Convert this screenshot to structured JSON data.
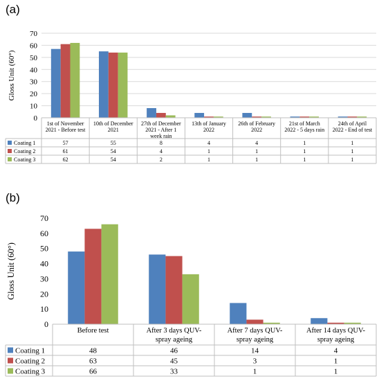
{
  "panel_a_label": "(a)",
  "panel_b_label": "(b)",
  "colors": {
    "series1": "#4f81bd",
    "series2": "#c0504d",
    "series3": "#9bbb59"
  },
  "chart_data": [
    {
      "type": "bar",
      "title": "",
      "ylabel": "Gloss Unit (60°)",
      "xlabel": "",
      "ylim": [
        0,
        70
      ],
      "yticks": [
        0,
        10,
        20,
        30,
        40,
        50,
        60,
        70
      ],
      "grid": true,
      "legend": "data-table",
      "categories": [
        [
          "1st of November",
          "2021 - Before test"
        ],
        [
          "10th of December",
          "2021"
        ],
        [
          "27th of December",
          "2021 - After 1",
          "week rain"
        ],
        [
          "13th of January",
          "2022"
        ],
        [
          "26th of February",
          "2022"
        ],
        [
          "21st of March",
          "2022 - 5 days rain"
        ],
        [
          "24th of April",
          "2022 - End of test"
        ]
      ],
      "series": [
        {
          "name": "Coating 1",
          "values": [
            57,
            55,
            8,
            4,
            4,
            1,
            1
          ]
        },
        {
          "name": "Coating 2",
          "values": [
            61,
            54,
            4,
            1,
            1,
            1,
            1
          ]
        },
        {
          "name": "Coating 3",
          "values": [
            62,
            54,
            2,
            1,
            1,
            1,
            1
          ]
        }
      ]
    },
    {
      "type": "bar",
      "title": "",
      "ylabel": "Gloss Unit (60°)",
      "xlabel": "",
      "ylim": [
        0,
        70
      ],
      "yticks": [
        0,
        10,
        20,
        30,
        40,
        50,
        60,
        70
      ],
      "grid": false,
      "legend": "data-table",
      "categories": [
        [
          "Before test"
        ],
        [
          "After 3 days QUV-",
          "spray ageing"
        ],
        [
          "After 7 days QUV-",
          "spray ageing"
        ],
        [
          "After 14  days QUV-",
          "spray ageing"
        ]
      ],
      "series": [
        {
          "name": "Coating 1",
          "values": [
            48,
            46,
            14,
            4
          ]
        },
        {
          "name": "Coating 2",
          "values": [
            63,
            45,
            3,
            1
          ]
        },
        {
          "name": "Coating 3",
          "values": [
            66,
            33,
            1,
            1
          ]
        }
      ]
    }
  ]
}
